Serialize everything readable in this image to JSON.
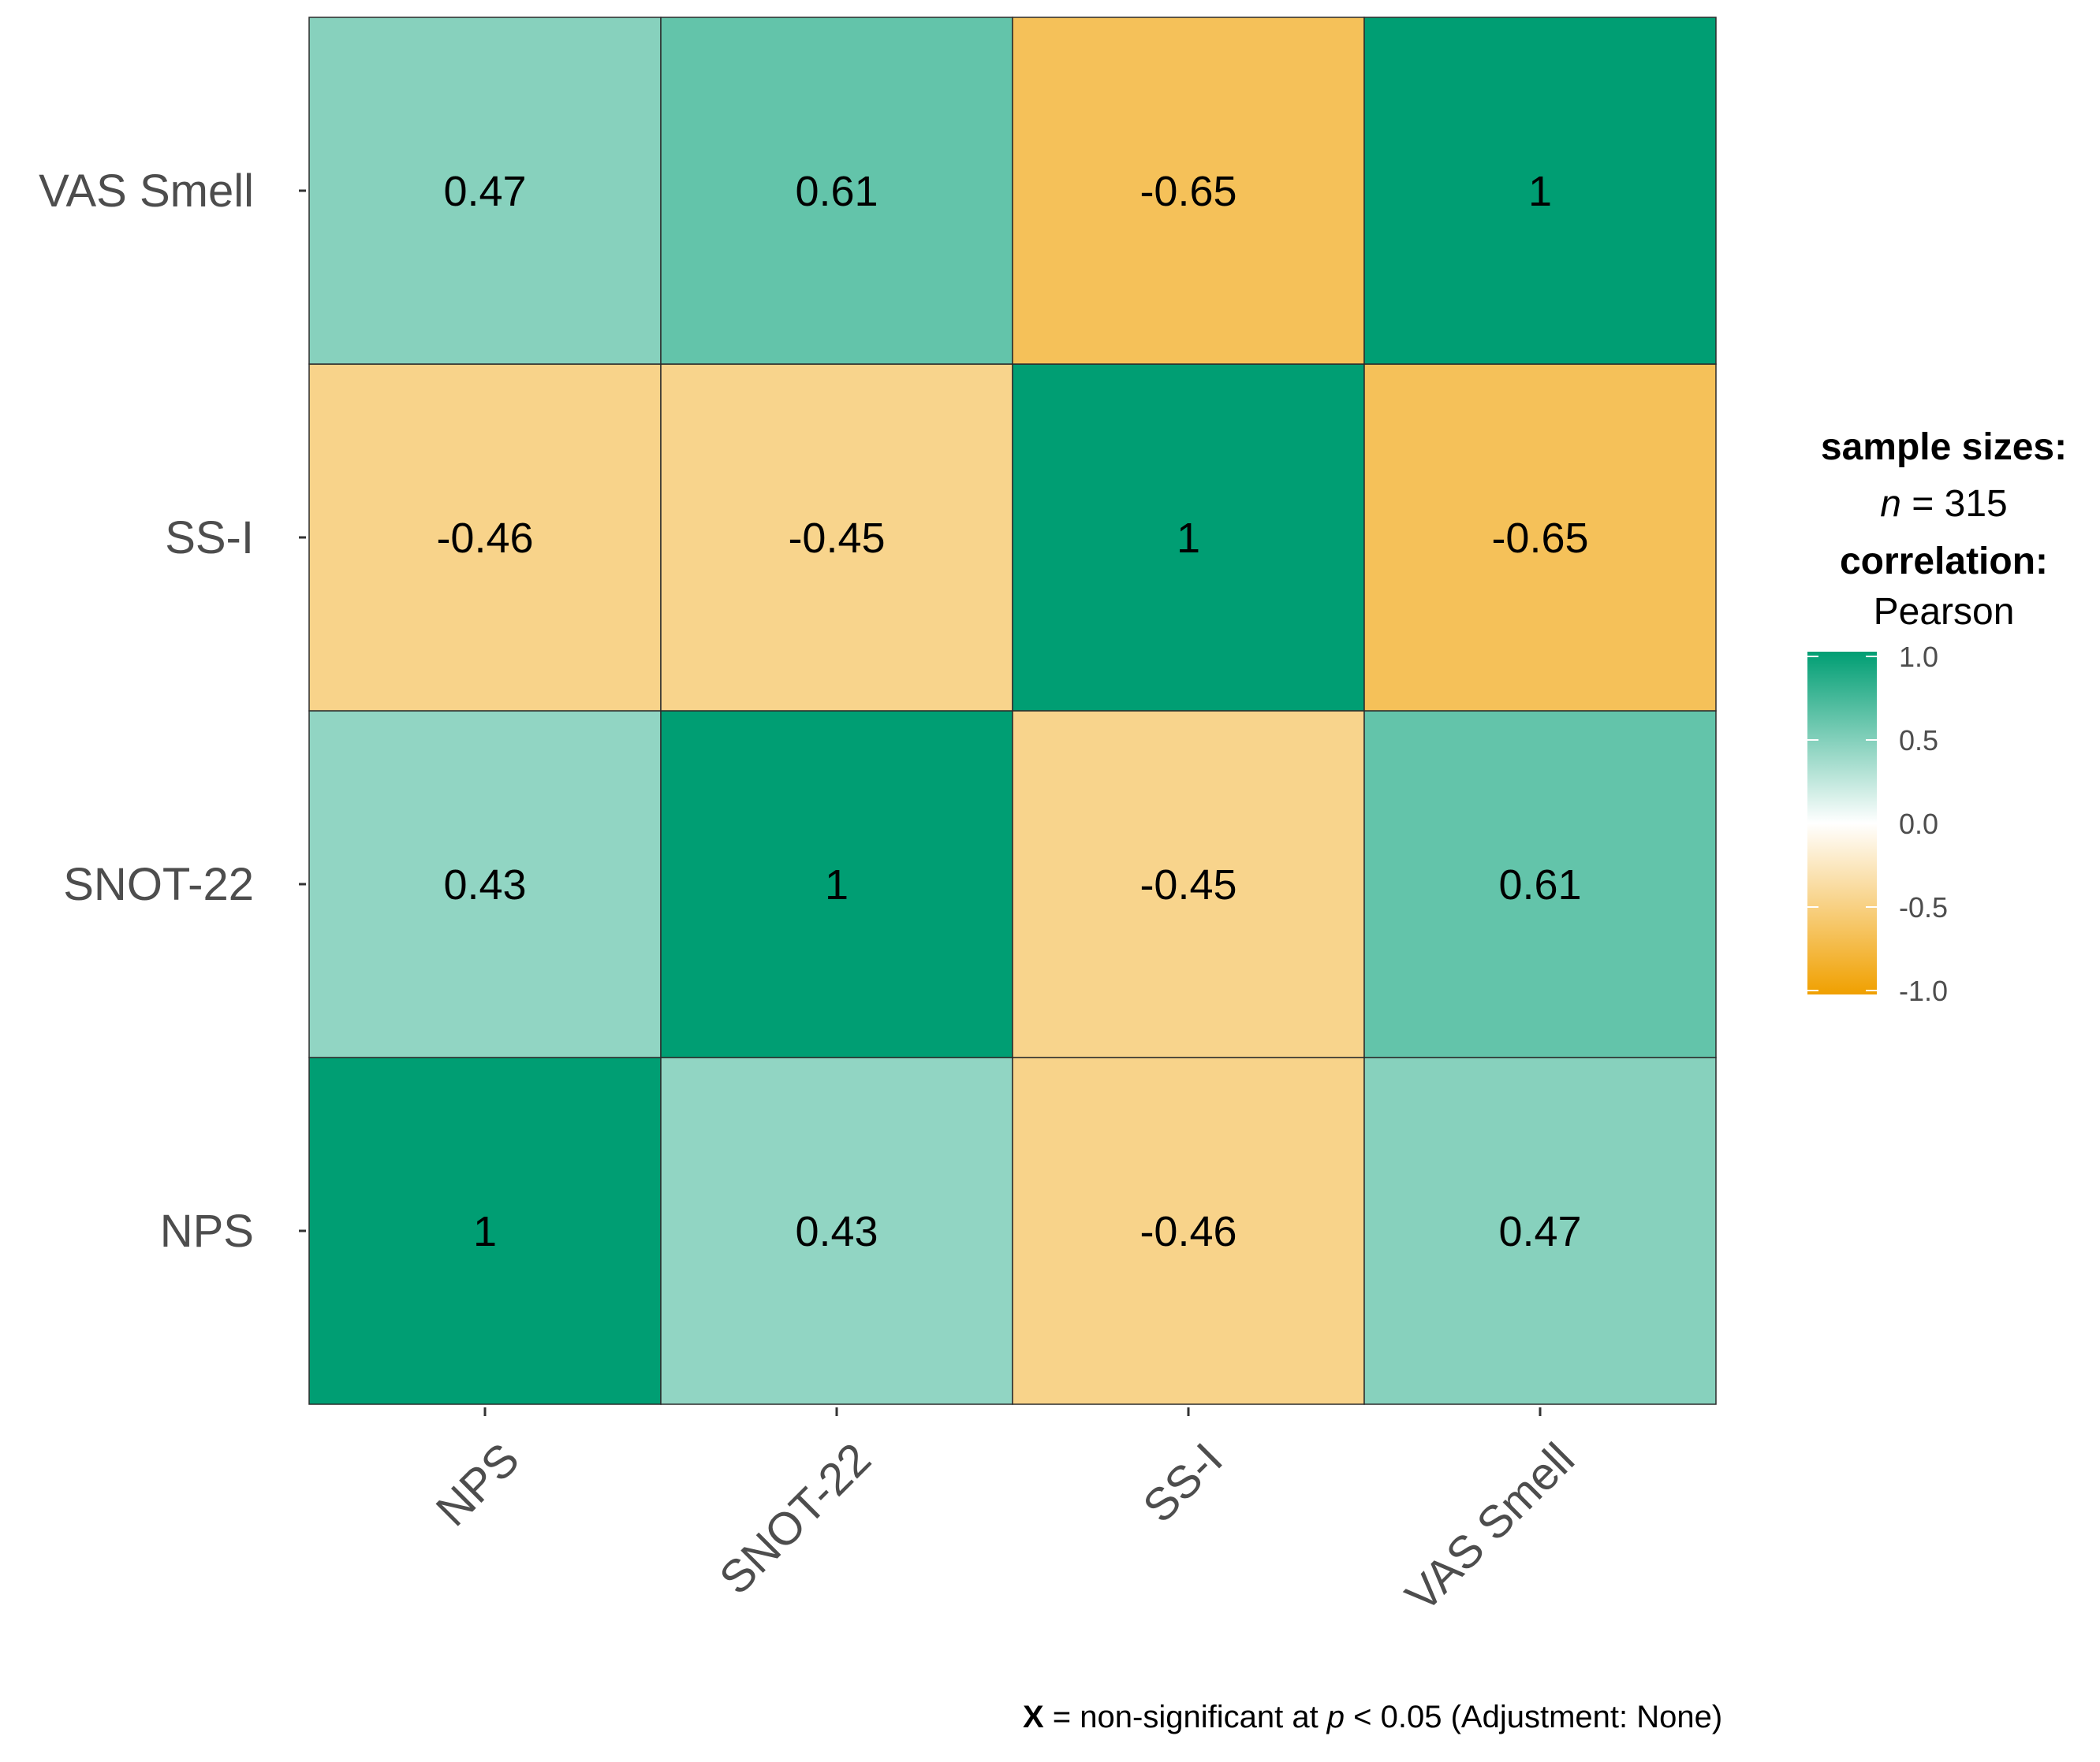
{
  "chart_data": {
    "type": "heatmap",
    "x_categories": [
      "NPS",
      "SNOT-22",
      "SS-I",
      "VAS Smell"
    ],
    "y_categories": [
      "NPS",
      "SNOT-22",
      "SS-I",
      "VAS Smell"
    ],
    "values": [
      [
        1,
        0.43,
        -0.46,
        0.47
      ],
      [
        0.43,
        1,
        -0.45,
        0.61
      ],
      [
        -0.46,
        -0.45,
        1,
        -0.65
      ],
      [
        0.47,
        0.61,
        -0.65,
        1
      ]
    ],
    "labels": [
      [
        "1",
        "0.43",
        "-0.46",
        "0.47"
      ],
      [
        "0.43",
        "1",
        "-0.45",
        "0.61"
      ],
      [
        "-0.46",
        "-0.45",
        "1",
        "-0.65"
      ],
      [
        "0.47",
        "0.61",
        "-0.65",
        "1"
      ]
    ],
    "legend": {
      "sample_sizes_title": "sample sizes:",
      "n_symbol": "n",
      "n_equals": " = 315",
      "correlation_title": "correlation:",
      "correlation_method": "Pearson",
      "ticks": [
        "1.0",
        "0.5",
        "0.0",
        "-0.5",
        "-1.0"
      ],
      "range": [
        -1,
        1
      ]
    },
    "caption": {
      "symbol": "X",
      "text_1": " = non-significant at ",
      "p_symbol": "p",
      "text_2": " < 0.05 (Adjustment: None)"
    },
    "colors": {
      "high": "#009E73",
      "mid": "#FFFFFF",
      "low": "#F0A000"
    }
  }
}
